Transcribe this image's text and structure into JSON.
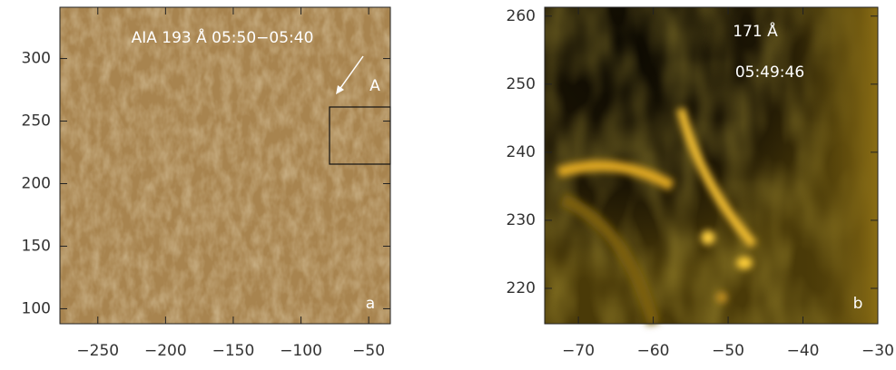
{
  "chart_data": [
    {
      "type": "image",
      "title": "AIA 193 Å 05:50−05:40",
      "annotation": "A",
      "panel_label": "a",
      "xlim": [
        -278,
        -34
      ],
      "ylim": [
        88,
        341
      ],
      "xticks": [
        {
          "value": -250,
          "label": "−250"
        },
        {
          "value": -200,
          "label": "−200"
        },
        {
          "value": -150,
          "label": "−150"
        },
        {
          "value": -100,
          "label": "−100"
        },
        {
          "value": -50,
          "label": "−50"
        }
      ],
      "yticks": [
        100,
        150,
        200,
        250,
        300
      ]
    },
    {
      "type": "image",
      "title": "171 Å",
      "subtitle": "05:49:46",
      "panel_label": "b",
      "xlim": [
        -74.5,
        -30
      ],
      "ylim": [
        214.8,
        261.3
      ],
      "xticks": [
        {
          "value": -70,
          "label": "−70"
        },
        {
          "value": -60,
          "label": "−60"
        },
        {
          "value": -50,
          "label": "−50"
        },
        {
          "value": -40,
          "label": "−40"
        },
        {
          "value": -30,
          "label": "−30"
        }
      ],
      "yticks": [
        220,
        230,
        240,
        250,
        260
      ]
    }
  ]
}
